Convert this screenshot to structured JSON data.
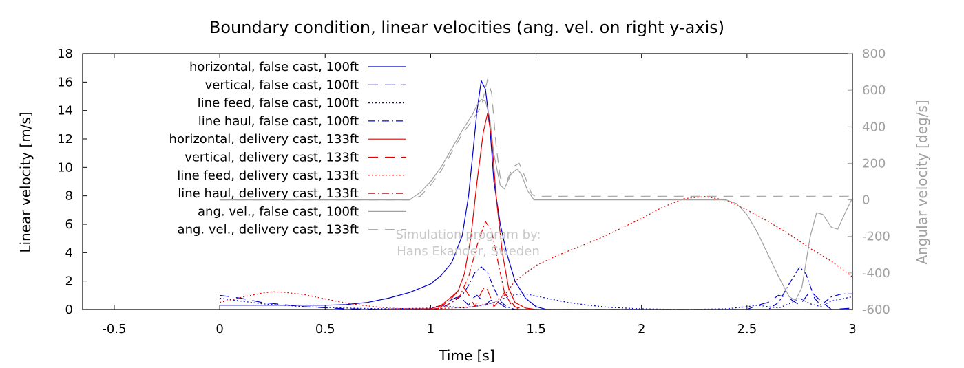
{
  "chart_data": {
    "type": "line",
    "title": "Boundary condition, linear velocities (ang. vel. on right y-axis)",
    "xlabel": "Time [s]",
    "ylabel": "Linear velocity [m/s]",
    "y2label": "Angular velocity [deg/s]",
    "xlim": [
      -0.65,
      3
    ],
    "ylim": [
      0,
      18
    ],
    "y2lim": [
      -600,
      800
    ],
    "xticks": [
      "-0.5",
      "0",
      "0.5",
      "1",
      "1.5",
      "2",
      "2.5",
      "3"
    ],
    "xtick_values": [
      -0.5,
      0,
      0.5,
      1,
      1.5,
      2,
      2.5,
      3
    ],
    "yticks": [
      "0",
      "2",
      "4",
      "6",
      "8",
      "10",
      "12",
      "14",
      "16",
      "18"
    ],
    "ytick_values": [
      0,
      2,
      4,
      6,
      8,
      10,
      12,
      14,
      16,
      18
    ],
    "y2ticks": [
      "-600",
      "-400",
      "-200",
      "0",
      "200",
      "400",
      "600",
      "800"
    ],
    "y2tick_values": [
      -600,
      -400,
      -200,
      0,
      200,
      400,
      600,
      800
    ],
    "grid": false,
    "legend_position": "top-left",
    "watermark": [
      "Simulation program by:",
      "Hans Ekander, Sweden"
    ],
    "series": [
      {
        "name": "horizontal, false cast, 100ft",
        "color": "#0000cc",
        "dash": "solid",
        "axis": "left",
        "points": [
          [
            0,
            0.3
          ],
          [
            0.3,
            0.3
          ],
          [
            0.5,
            0.3
          ],
          [
            0.6,
            0.35
          ],
          [
            0.7,
            0.5
          ],
          [
            0.8,
            0.8
          ],
          [
            0.9,
            1.2
          ],
          [
            1.0,
            1.8
          ],
          [
            1.05,
            2.4
          ],
          [
            1.1,
            3.3
          ],
          [
            1.15,
            5.2
          ],
          [
            1.18,
            8
          ],
          [
            1.2,
            11
          ],
          [
            1.22,
            14
          ],
          [
            1.24,
            16.1
          ],
          [
            1.26,
            15.5
          ],
          [
            1.28,
            13
          ],
          [
            1.3,
            9
          ],
          [
            1.33,
            6
          ],
          [
            1.36,
            4
          ],
          [
            1.4,
            2
          ],
          [
            1.45,
            0.8
          ],
          [
            1.5,
            0.2
          ],
          [
            1.55,
            0
          ],
          [
            3.0,
            0
          ]
        ]
      },
      {
        "name": "vertical, false cast, 100ft",
        "color": "#0000cc",
        "dash": "long",
        "axis": "left",
        "points": [
          [
            0,
            1.0
          ],
          [
            0.1,
            0.8
          ],
          [
            0.2,
            0.5
          ],
          [
            0.4,
            0.2
          ],
          [
            0.6,
            0.05
          ],
          [
            0.8,
            0
          ],
          [
            1.0,
            0.05
          ],
          [
            1.05,
            0.3
          ],
          [
            1.1,
            0.7
          ],
          [
            1.13,
            0.9
          ],
          [
            1.16,
            0.6
          ],
          [
            1.18,
            0.3
          ],
          [
            1.2,
            0.8
          ],
          [
            1.22,
            1.0
          ],
          [
            1.24,
            0.7
          ],
          [
            1.26,
            0.3
          ],
          [
            1.28,
            0.6
          ],
          [
            1.3,
            0.7
          ],
          [
            1.33,
            0.4
          ],
          [
            1.36,
            0.1
          ],
          [
            1.4,
            0
          ],
          [
            2.5,
            0
          ],
          [
            2.55,
            0.3
          ],
          [
            2.6,
            0.5
          ],
          [
            2.65,
            1.0
          ],
          [
            2.7,
            0.8
          ],
          [
            2.75,
            0.3
          ],
          [
            2.8,
            1.3
          ],
          [
            2.85,
            0.6
          ],
          [
            2.9,
            0
          ],
          [
            3.0,
            0.1
          ]
        ]
      },
      {
        "name": "line feed, false cast, 100ft",
        "color": "#0000cc",
        "dash": "dotted",
        "axis": "left",
        "points": [
          [
            0,
            0.8
          ],
          [
            0.1,
            0.6
          ],
          [
            0.2,
            0.4
          ],
          [
            0.4,
            0.2
          ],
          [
            0.6,
            0.1
          ],
          [
            0.8,
            0.05
          ],
          [
            1.0,
            0.1
          ],
          [
            1.05,
            0.3
          ],
          [
            1.1,
            0.2
          ],
          [
            1.15,
            0.1
          ],
          [
            1.2,
            0.2
          ],
          [
            1.25,
            0.3
          ],
          [
            1.3,
            0.5
          ],
          [
            1.35,
            0.8
          ],
          [
            1.4,
            1.05
          ],
          [
            1.45,
            1.1
          ],
          [
            1.55,
            0.8
          ],
          [
            1.65,
            0.5
          ],
          [
            1.75,
            0.3
          ],
          [
            1.85,
            0.15
          ],
          [
            2.0,
            0.05
          ],
          [
            2.2,
            0
          ],
          [
            2.4,
            0.05
          ],
          [
            2.5,
            0.2
          ],
          [
            2.55,
            0.3
          ],
          [
            2.6,
            0.2
          ],
          [
            2.65,
            0.1
          ],
          [
            2.7,
            0.4
          ],
          [
            2.75,
            0.8
          ],
          [
            2.8,
            0.4
          ],
          [
            2.85,
            0.2
          ],
          [
            2.9,
            0.6
          ],
          [
            3.0,
            0.9
          ]
        ]
      },
      {
        "name": "line haul, false cast, 100ft",
        "color": "#0000cc",
        "dash": "dashdot",
        "axis": "left",
        "points": [
          [
            1.0,
            0
          ],
          [
            1.05,
            0.1
          ],
          [
            1.1,
            0.5
          ],
          [
            1.15,
            1.0
          ],
          [
            1.18,
            1.7
          ],
          [
            1.21,
            2.6
          ],
          [
            1.24,
            3.0
          ],
          [
            1.27,
            2.6
          ],
          [
            1.3,
            1.5
          ],
          [
            1.33,
            0.6
          ],
          [
            1.36,
            0.2
          ],
          [
            1.4,
            0
          ],
          [
            2.6,
            0
          ],
          [
            2.65,
            0.5
          ],
          [
            2.7,
            1.8
          ],
          [
            2.75,
            3.0
          ],
          [
            2.78,
            2.5
          ],
          [
            2.82,
            0.8
          ],
          [
            2.85,
            0.3
          ],
          [
            2.9,
            0.9
          ],
          [
            2.95,
            1.1
          ],
          [
            3.0,
            1.1
          ]
        ]
      },
      {
        "name": "horizontal, delivery cast, 133ft",
        "color": "#e00000",
        "dash": "solid",
        "axis": "left",
        "points": [
          [
            0.8,
            0
          ],
          [
            1.0,
            0.05
          ],
          [
            1.05,
            0.3
          ],
          [
            1.1,
            0.9
          ],
          [
            1.13,
            1.3
          ],
          [
            1.16,
            2.5
          ],
          [
            1.19,
            5
          ],
          [
            1.22,
            9
          ],
          [
            1.25,
            12.5
          ],
          [
            1.27,
            13.8
          ],
          [
            1.29,
            12
          ],
          [
            1.31,
            8
          ],
          [
            1.34,
            4
          ],
          [
            1.37,
            1.5
          ],
          [
            1.4,
            0.5
          ],
          [
            1.45,
            0.1
          ],
          [
            1.5,
            0
          ],
          [
            3.0,
            0
          ]
        ]
      },
      {
        "name": "vertical, delivery cast, 133ft",
        "color": "#e00000",
        "dash": "long",
        "axis": "left",
        "points": [
          [
            0.8,
            0
          ],
          [
            1.0,
            0.05
          ],
          [
            1.05,
            0.2
          ],
          [
            1.1,
            0.8
          ],
          [
            1.13,
            1.3
          ],
          [
            1.16,
            1.5
          ],
          [
            1.19,
            0.8
          ],
          [
            1.21,
            0.2
          ],
          [
            1.24,
            1.2
          ],
          [
            1.26,
            1.7
          ],
          [
            1.28,
            1.0
          ],
          [
            1.3,
            0.2
          ],
          [
            1.33,
            0.7
          ],
          [
            1.35,
            1.2
          ],
          [
            1.37,
            0.8
          ],
          [
            1.4,
            0.2
          ],
          [
            1.45,
            0
          ],
          [
            3.0,
            0
          ]
        ]
      },
      {
        "name": "line feed, delivery cast, 133ft",
        "color": "#e00000",
        "dash": "dotted",
        "axis": "left",
        "points": [
          [
            0,
            0.5
          ],
          [
            0.1,
            0.85
          ],
          [
            0.2,
            1.15
          ],
          [
            0.25,
            1.25
          ],
          [
            0.3,
            1.22
          ],
          [
            0.4,
            1.05
          ],
          [
            0.5,
            0.75
          ],
          [
            0.6,
            0.45
          ],
          [
            0.7,
            0.25
          ],
          [
            0.8,
            0.1
          ],
          [
            0.9,
            0.05
          ],
          [
            1.0,
            0.05
          ],
          [
            1.1,
            0.1
          ],
          [
            1.2,
            0.2
          ],
          [
            1.3,
            0.5
          ],
          [
            1.35,
            1.0
          ],
          [
            1.4,
            2.0
          ],
          [
            1.5,
            3.1
          ],
          [
            1.6,
            3.8
          ],
          [
            1.7,
            4.4
          ],
          [
            1.8,
            5.0
          ],
          [
            1.9,
            5.7
          ],
          [
            2.0,
            6.4
          ],
          [
            2.1,
            7.2
          ],
          [
            2.2,
            7.8
          ],
          [
            2.3,
            7.95
          ],
          [
            2.4,
            7.7
          ],
          [
            2.5,
            7.0
          ],
          [
            2.6,
            6.2
          ],
          [
            2.7,
            5.3
          ],
          [
            2.8,
            4.3
          ],
          [
            2.9,
            3.4
          ],
          [
            3.0,
            2.3
          ]
        ]
      },
      {
        "name": "line haul, delivery cast, 133ft",
        "color": "#e00000",
        "dash": "dashdot",
        "axis": "left",
        "points": [
          [
            1.0,
            0
          ],
          [
            1.05,
            0.1
          ],
          [
            1.1,
            0.5
          ],
          [
            1.14,
            1.0
          ],
          [
            1.18,
            2.3
          ],
          [
            1.22,
            4.5
          ],
          [
            1.26,
            6.2
          ],
          [
            1.29,
            5.5
          ],
          [
            1.32,
            3.3
          ],
          [
            1.35,
            1.2
          ],
          [
            1.38,
            0.4
          ],
          [
            1.42,
            0
          ],
          [
            3.0,
            0
          ]
        ]
      },
      {
        "name": "ang. vel., false cast, 100ft",
        "color": "#a0a0a0",
        "dash": "solid",
        "axis": "right",
        "points": [
          [
            0,
            0
          ],
          [
            0.5,
            0
          ],
          [
            0.9,
            0
          ],
          [
            0.95,
            40
          ],
          [
            1.0,
            100
          ],
          [
            1.05,
            180
          ],
          [
            1.1,
            280
          ],
          [
            1.15,
            380
          ],
          [
            1.2,
            470
          ],
          [
            1.22,
            520
          ],
          [
            1.24,
            550
          ],
          [
            1.26,
            540
          ],
          [
            1.28,
            450
          ],
          [
            1.3,
            250
          ],
          [
            1.33,
            80
          ],
          [
            1.35,
            60
          ],
          [
            1.38,
            140
          ],
          [
            1.41,
            170
          ],
          [
            1.43,
            140
          ],
          [
            1.46,
            50
          ],
          [
            1.49,
            0
          ],
          [
            1.52,
            0
          ],
          [
            2.4,
            0
          ],
          [
            2.45,
            -20
          ],
          [
            2.5,
            -80
          ],
          [
            2.55,
            -180
          ],
          [
            2.6,
            -300
          ],
          [
            2.65,
            -420
          ],
          [
            2.7,
            -530
          ],
          [
            2.73,
            -550
          ],
          [
            2.76,
            -480
          ],
          [
            2.8,
            -200
          ],
          [
            2.83,
            -70
          ],
          [
            2.86,
            -80
          ],
          [
            2.9,
            -150
          ],
          [
            2.93,
            -160
          ],
          [
            2.97,
            -60
          ],
          [
            3.0,
            10
          ]
        ]
      },
      {
        "name": "ang. vel., delivery cast, 133ft",
        "color": "#a0a0a0",
        "dash": "long",
        "axis": "right",
        "points": [
          [
            0,
            0
          ],
          [
            0.5,
            0
          ],
          [
            0.9,
            0
          ],
          [
            0.95,
            20
          ],
          [
            1.0,
            80
          ],
          [
            1.05,
            160
          ],
          [
            1.1,
            260
          ],
          [
            1.15,
            360
          ],
          [
            1.2,
            440
          ],
          [
            1.24,
            510
          ],
          [
            1.27,
            660
          ],
          [
            1.29,
            580
          ],
          [
            1.31,
            300
          ],
          [
            1.33,
            120
          ],
          [
            1.36,
            100
          ],
          [
            1.39,
            180
          ],
          [
            1.42,
            200
          ],
          [
            1.45,
            120
          ],
          [
            1.48,
            30
          ],
          [
            1.5,
            20
          ],
          [
            3.0,
            20
          ]
        ]
      }
    ]
  }
}
